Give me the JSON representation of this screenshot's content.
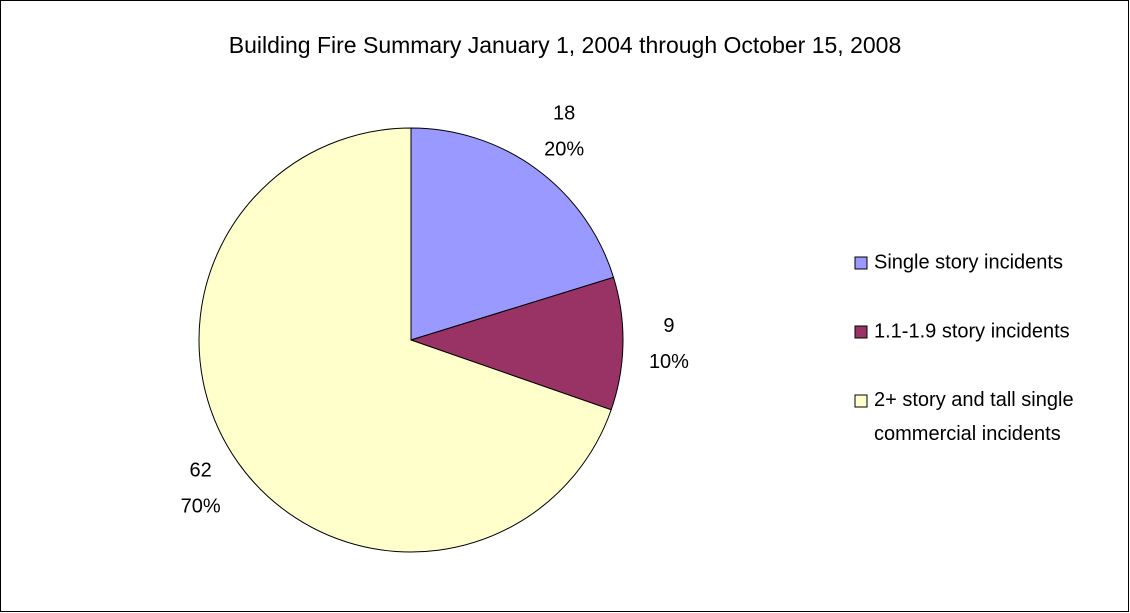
{
  "chart_data": {
    "type": "pie",
    "title": "Building Fire Summary January 1, 2004 through October 15, 2008",
    "categories": [
      "Single story incidents",
      "1.1-1.9 story incidents",
      "2+ story and tall single commercial incidents"
    ],
    "values": [
      18,
      9,
      62
    ],
    "percent_labels": [
      "20%",
      "10%",
      "70%"
    ],
    "colors": [
      "#9999ff",
      "#993366",
      "#ffffcc"
    ],
    "legend": "right"
  }
}
